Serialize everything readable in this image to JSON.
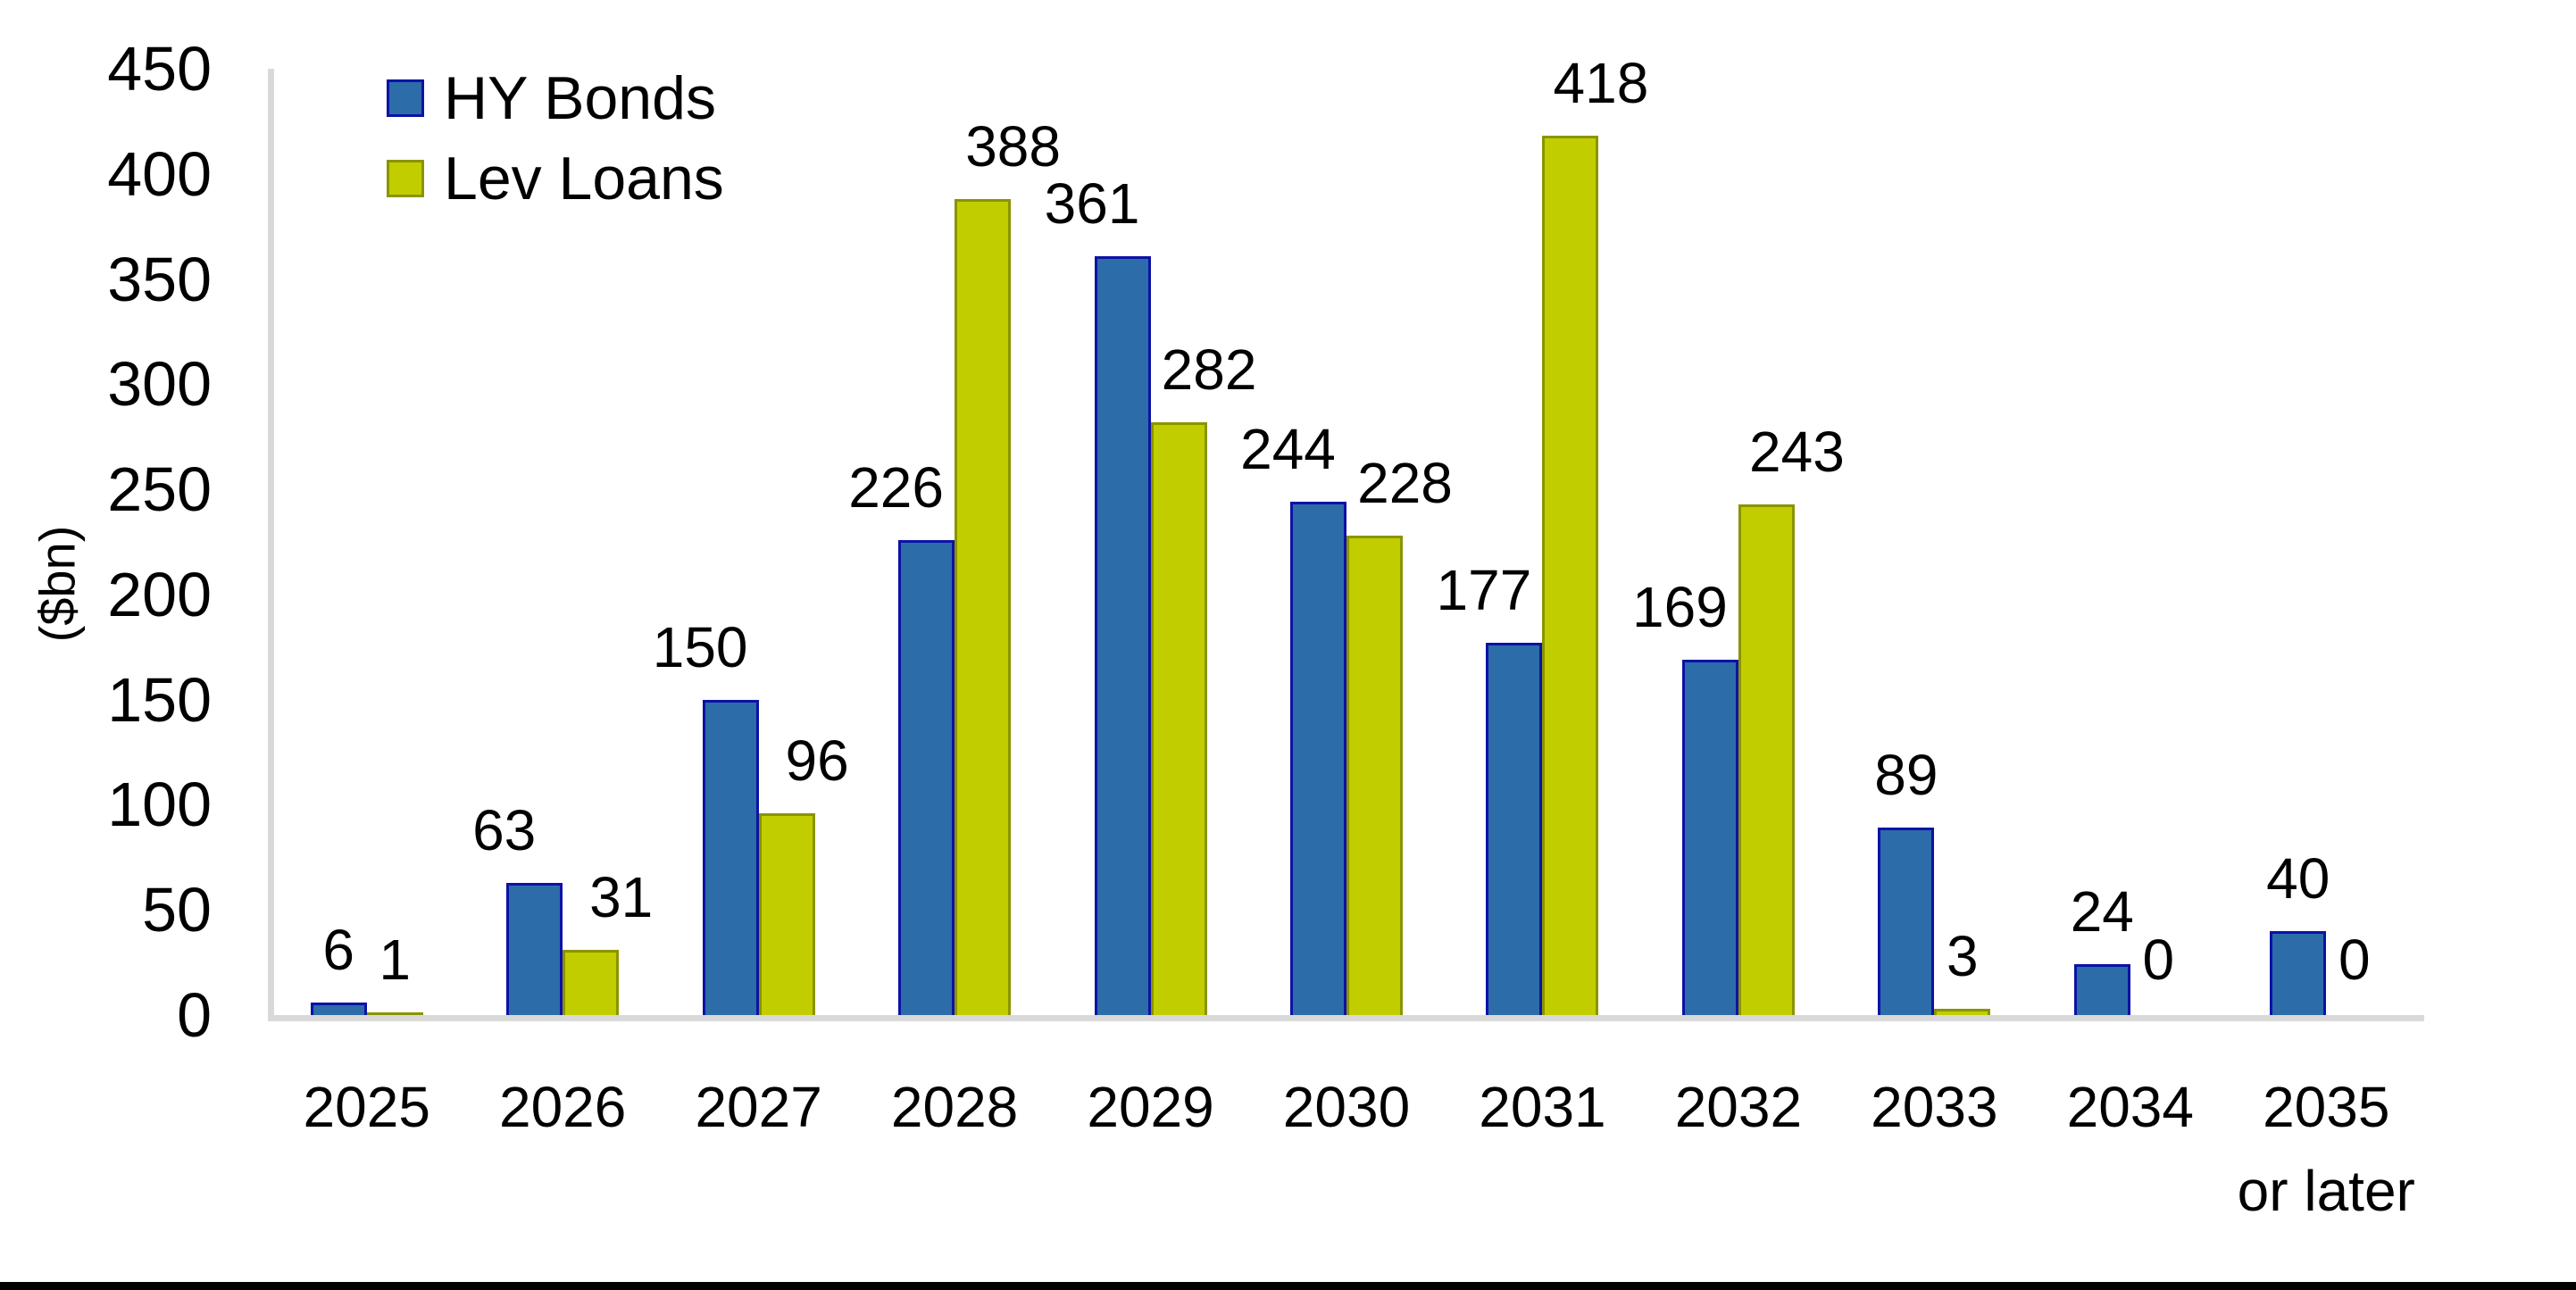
{
  "chart_data": {
    "type": "bar",
    "title": "",
    "xlabel": "",
    "ylabel": "($bn)",
    "ylim": [
      0,
      450
    ],
    "ytick_step": 50,
    "yticks": [
      0,
      50,
      100,
      150,
      200,
      250,
      300,
      350,
      400,
      450
    ],
    "grid": false,
    "data_labels": true,
    "legend_position": "top-left",
    "categories": [
      "2025",
      "2026",
      "2027",
      "2028",
      "2029",
      "2030",
      "2031",
      "2032",
      "2033",
      "2034",
      "2035 or later"
    ],
    "series": [
      {
        "name": "HY Bonds",
        "color": "#2b6ca9",
        "border_color": "#0d12a6",
        "values": [
          6,
          63,
          150,
          226,
          361,
          244,
          177,
          169,
          89,
          24,
          40
        ]
      },
      {
        "name": "Lev Loans",
        "color": "#c2cd00",
        "border_color": "#8a9400",
        "values": [
          1,
          31,
          96,
          388,
          282,
          228,
          418,
          243,
          3,
          0,
          0
        ]
      }
    ]
  },
  "colors": {
    "axis_line": "#d9d9d9",
    "text": "#000000",
    "bottom_border": "#000000",
    "background": "#ffffff"
  }
}
